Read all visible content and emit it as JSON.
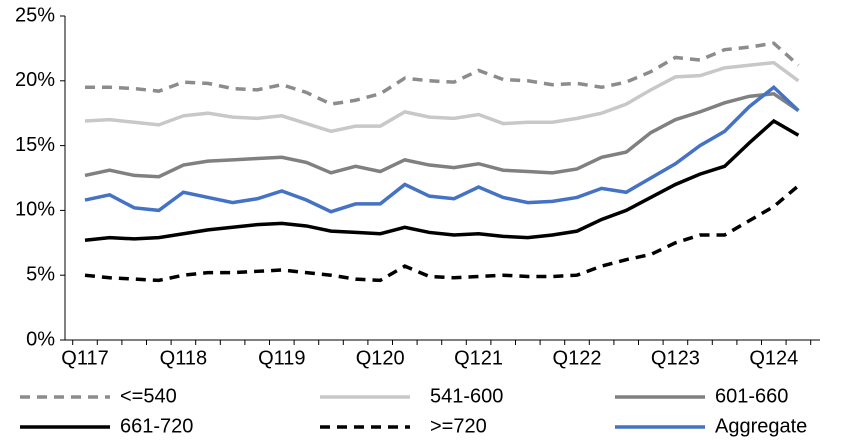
{
  "chart_data": {
    "type": "line",
    "categories": [
      "Q117",
      null,
      null,
      null,
      "Q118",
      null,
      null,
      null,
      "Q119",
      null,
      null,
      null,
      "Q120",
      null,
      null,
      null,
      "Q121",
      null,
      null,
      null,
      "Q122",
      null,
      null,
      null,
      "Q123",
      null,
      null,
      null,
      "Q124",
      null
    ],
    "ylim": [
      0,
      25
    ],
    "yticks": [
      {
        "value": 0,
        "label": "0%"
      },
      {
        "value": 5,
        "label": "5%"
      },
      {
        "value": 10,
        "label": "10%"
      },
      {
        "value": 15,
        "label": "15%"
      },
      {
        "value": 20,
        "label": "20%"
      },
      {
        "value": 25,
        "label": "25%"
      }
    ],
    "series": [
      {
        "name": "<=540",
        "color": "#8c8c8c",
        "dashed": true,
        "values": [
          19.5,
          19.5,
          19.4,
          19.2,
          19.9,
          19.8,
          19.4,
          19.3,
          19.7,
          19.1,
          18.2,
          18.5,
          19.0,
          20.2,
          20.0,
          19.9,
          20.8,
          20.1,
          20.0,
          19.7,
          19.8,
          19.5,
          19.9,
          20.7,
          21.8,
          21.6,
          22.4,
          22.6,
          22.9,
          21.2
        ]
      },
      {
        "name": "541-600",
        "color": "#c8c8c8",
        "dashed": false,
        "values": [
          16.9,
          17.0,
          16.8,
          16.6,
          17.3,
          17.5,
          17.2,
          17.1,
          17.3,
          16.7,
          16.1,
          16.5,
          16.5,
          17.6,
          17.2,
          17.1,
          17.4,
          16.7,
          16.8,
          16.8,
          17.1,
          17.5,
          18.2,
          19.3,
          20.3,
          20.4,
          21.0,
          21.2,
          21.4,
          20.0
        ]
      },
      {
        "name": "601-660",
        "color": "#808080",
        "dashed": false,
        "values": [
          12.7,
          13.1,
          12.7,
          12.6,
          13.5,
          13.8,
          13.9,
          14.0,
          14.1,
          13.7,
          12.9,
          13.4,
          13.0,
          13.9,
          13.5,
          13.3,
          13.6,
          13.1,
          13.0,
          12.9,
          13.2,
          14.1,
          14.5,
          16.0,
          17.0,
          17.6,
          18.3,
          18.8,
          19.0,
          17.7
        ]
      },
      {
        "name": "661-720",
        "color": "#000000",
        "dashed": false,
        "values": [
          7.7,
          7.9,
          7.8,
          7.9,
          8.2,
          8.5,
          8.7,
          8.9,
          9.0,
          8.8,
          8.4,
          8.3,
          8.2,
          8.7,
          8.3,
          8.1,
          8.2,
          8.0,
          7.9,
          8.1,
          8.4,
          9.3,
          10.0,
          11.0,
          12.0,
          12.8,
          13.4,
          15.2,
          16.9,
          15.8
        ]
      },
      {
        "name": ">=720",
        "color": "#000000",
        "dashed": true,
        "values": [
          5.0,
          4.8,
          4.7,
          4.6,
          5.0,
          5.2,
          5.2,
          5.3,
          5.4,
          5.2,
          5.0,
          4.7,
          4.6,
          5.7,
          4.9,
          4.8,
          4.9,
          5.0,
          4.9,
          4.9,
          5.0,
          5.7,
          6.2,
          6.6,
          7.5,
          8.1,
          8.1,
          9.2,
          10.3,
          11.9
        ]
      },
      {
        "name": "Aggregate",
        "color": "#4472c4",
        "dashed": false,
        "values": [
          10.8,
          11.2,
          10.2,
          10.0,
          11.4,
          11.0,
          10.6,
          10.9,
          11.5,
          10.8,
          9.9,
          10.5,
          10.5,
          12.0,
          11.1,
          10.9,
          11.8,
          11.0,
          10.6,
          10.7,
          11.0,
          11.7,
          11.4,
          12.5,
          13.6,
          15.0,
          16.1,
          18.0,
          19.5,
          17.7
        ]
      }
    ]
  }
}
